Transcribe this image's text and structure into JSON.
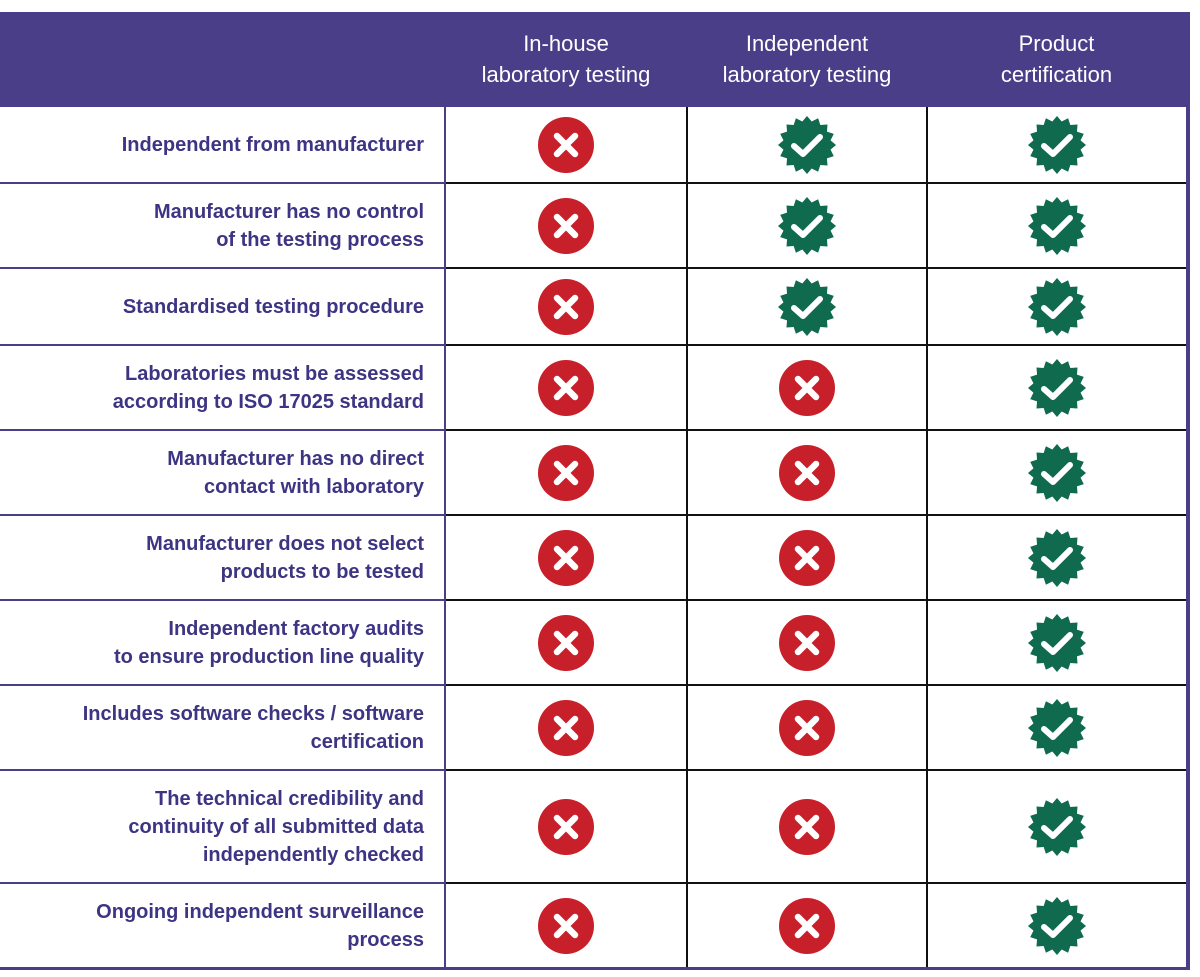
{
  "columns": [
    {
      "lines": [
        "In-house",
        "laboratory testing"
      ]
    },
    {
      "lines": [
        "Independent",
        "laboratory testing"
      ]
    },
    {
      "lines": [
        "Product",
        "certification"
      ]
    }
  ],
  "rows": [
    {
      "lines": [
        "Independent from manufacturer"
      ],
      "values": [
        "no",
        "yes",
        "yes"
      ]
    },
    {
      "lines": [
        "Manufacturer has no control",
        "of the testing process"
      ],
      "values": [
        "no",
        "yes",
        "yes"
      ]
    },
    {
      "lines": [
        "Standardised testing procedure"
      ],
      "values": [
        "no",
        "yes",
        "yes"
      ]
    },
    {
      "lines": [
        "Laboratories must be assessed",
        "according to ISO 17025 standard"
      ],
      "values": [
        "no",
        "no",
        "yes"
      ]
    },
    {
      "lines": [
        "Manufacturer has no direct",
        "contact with laboratory"
      ],
      "values": [
        "no",
        "no",
        "yes"
      ]
    },
    {
      "lines": [
        "Manufacturer does not select",
        "products to be tested"
      ],
      "values": [
        "no",
        "no",
        "yes"
      ]
    },
    {
      "lines": [
        "Independent factory audits",
        "to ensure production line quality"
      ],
      "values": [
        "no",
        "no",
        "yes"
      ]
    },
    {
      "lines": [
        "Includes software checks / software",
        "certification"
      ],
      "values": [
        "no",
        "no",
        "yes"
      ]
    },
    {
      "lines": [
        "The technical credibility and",
        "continuity of all submitted data",
        "independently checked"
      ],
      "values": [
        "no",
        "no",
        "yes"
      ]
    },
    {
      "lines": [
        "Ongoing independent surveillance",
        "process"
      ],
      "values": [
        "no",
        "no",
        "yes"
      ]
    }
  ],
  "icons": {
    "yes": {
      "name": "checkmark-badge-icon",
      "color": "#0f6a4e"
    },
    "no": {
      "name": "x-circle-icon",
      "color": "#c8202a"
    }
  },
  "colors": {
    "header_bg": "#4b3e88",
    "label_text": "#3d3483"
  }
}
